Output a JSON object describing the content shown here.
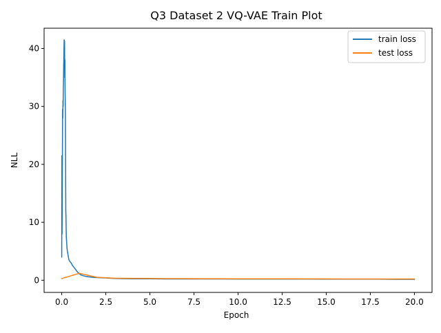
{
  "chart_data": {
    "type": "line",
    "title": "Q3 Dataset 2 VQ-VAE Train Plot",
    "xlabel": "Epoch",
    "ylabel": "NLL",
    "xlim": [
      -1.0,
      21.0
    ],
    "ylim": [
      -2.1,
      43.5
    ],
    "xticks": [
      0.0,
      2.5,
      5.0,
      7.5,
      10.0,
      12.5,
      15.0,
      17.5,
      20.0
    ],
    "xtick_labels": [
      "0.0",
      "2.5",
      "5.0",
      "7.5",
      "10.0",
      "12.5",
      "15.0",
      "17.5",
      "20.0"
    ],
    "yticks": [
      0,
      10,
      20,
      30,
      40
    ],
    "ytick_labels": [
      "0",
      "10",
      "20",
      "30",
      "40"
    ],
    "grid": false,
    "legend_position": "top-right",
    "series": [
      {
        "name": "train loss",
        "color": "#1f77b4",
        "x": [
          0.0,
          0.01,
          0.02,
          0.03,
          0.04,
          0.05,
          0.06,
          0.07,
          0.08,
          0.09,
          0.1,
          0.11,
          0.12,
          0.13,
          0.14,
          0.15,
          0.16,
          0.17,
          0.18,
          0.19,
          0.2,
          0.21,
          0.22,
          0.23,
          0.24,
          0.25,
          0.26,
          0.27,
          0.28,
          0.3,
          0.32,
          0.35,
          0.4,
          0.45,
          0.5,
          0.55,
          0.6,
          0.7,
          0.8,
          0.9,
          1.0,
          1.1,
          1.2,
          1.3,
          1.4,
          1.5,
          1.75,
          2.0,
          2.5,
          3.0,
          4.0,
          5.0,
          6.0,
          7.0,
          8.0,
          9.0,
          10.0,
          11.0,
          12.0,
          13.0,
          14.0,
          15.0,
          16.0,
          17.0,
          18.0,
          19.0,
          20.0
        ],
        "y": [
          4.0,
          21.5,
          8.0,
          15.0,
          22.0,
          29.5,
          28.0,
          31.0,
          30.0,
          33.0,
          34.5,
          37.0,
          38.5,
          40.5,
          41.5,
          39.0,
          41.3,
          35.0,
          38.0,
          33.0,
          31.0,
          28.0,
          20.0,
          12.0,
          11.0,
          9.0,
          7.5,
          7.0,
          6.5,
          5.5,
          5.0,
          4.5,
          3.6,
          3.3,
          3.1,
          2.9,
          2.6,
          2.2,
          1.8,
          1.4,
          1.1,
          0.9,
          0.8,
          0.7,
          0.65,
          0.6,
          0.5,
          0.45,
          0.4,
          0.3,
          0.25,
          0.25,
          0.22,
          0.22,
          0.22,
          0.22,
          0.2,
          0.2,
          0.2,
          0.2,
          0.2,
          0.18,
          0.18,
          0.18,
          0.18,
          0.16,
          0.16
        ]
      },
      {
        "name": "test loss",
        "color": "#ff7f0e",
        "x": [
          0,
          1,
          2,
          3,
          4,
          5,
          6,
          7,
          8,
          9,
          10,
          11,
          12,
          13,
          14,
          15,
          16,
          17,
          18,
          19,
          20
        ],
        "y": [
          0.3,
          1.2,
          0.5,
          0.35,
          0.32,
          0.3,
          0.28,
          0.27,
          0.26,
          0.26,
          0.25,
          0.25,
          0.24,
          0.24,
          0.23,
          0.23,
          0.22,
          0.22,
          0.22,
          0.21,
          0.21
        ]
      }
    ]
  }
}
